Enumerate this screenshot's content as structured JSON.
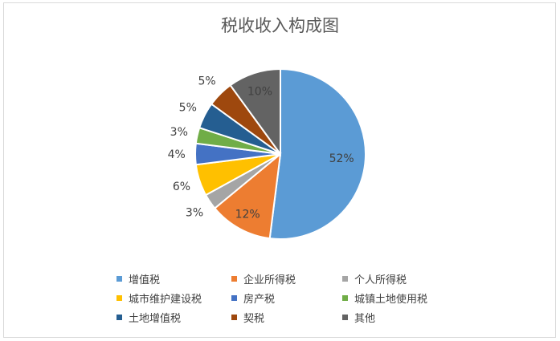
{
  "chart_data": {
    "type": "pie",
    "title": "税收收入构成图",
    "categories": [
      "增值税",
      "企业所得税",
      "个人所得税",
      "城市维护建设税",
      "房产税",
      "城镇土地使用税",
      "土地增值税",
      "契税",
      "其他"
    ],
    "values": [
      52,
      12,
      3,
      6,
      4,
      3,
      5,
      5,
      10
    ],
    "labels": [
      "52%",
      "12%",
      "3%",
      "6%",
      "4%",
      "3%",
      "5%",
      "5%",
      "10%"
    ],
    "colors": [
      "#5b9bd5",
      "#ed7d31",
      "#a5a5a5",
      "#ffc000",
      "#4472c4",
      "#70ad47",
      "#255e91",
      "#9e480e",
      "#636363"
    ],
    "legend_position": "bottom"
  }
}
